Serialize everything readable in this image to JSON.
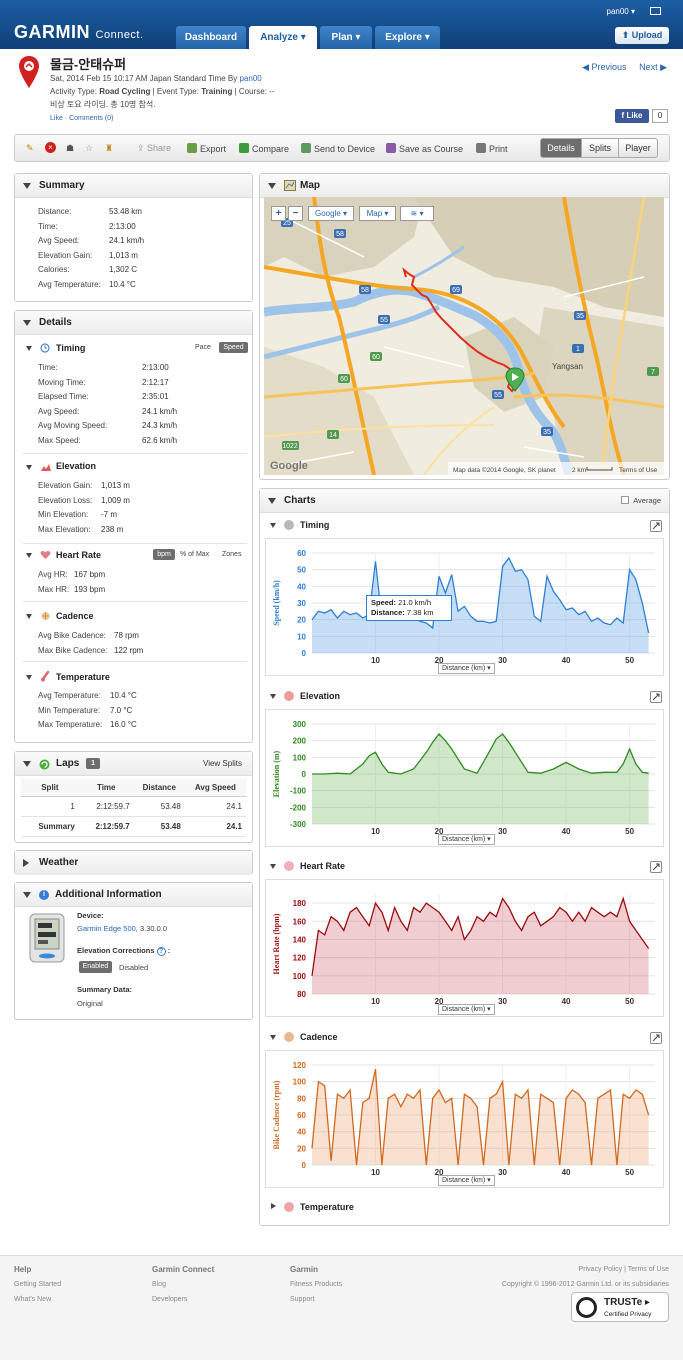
{
  "header": {
    "logo": "GARMIN",
    "logo_sub": "Connect.",
    "nav": [
      "Dashboard",
      "Analyze",
      "Plan",
      "Explore"
    ],
    "user": "pan00",
    "upload": "Upload"
  },
  "activity": {
    "name": "물금-안태슈퍼",
    "date_line": "Sat, 2014 Feb 15 10:17 AM Japan Standard Time By",
    "by_user": "pan00",
    "type_label": "Activity Type:",
    "type_value": "Road Cycling",
    "event_label": "| Event Type:",
    "event_value": "Training",
    "course_label": "| Course: --",
    "description": "비상 토요 라이딩. 총 10명 참석.",
    "like": "Like",
    "comments": "Comments (0)",
    "previous": "Previous",
    "next": "Next",
    "fb_like": "Like",
    "fb_count": "0"
  },
  "toolbar": {
    "share": "Share",
    "export": "Export",
    "compare": "Compare",
    "send": "Send to Device",
    "save_course": "Save as Course",
    "print": "Print",
    "views": [
      "Details",
      "Splits",
      "Player"
    ]
  },
  "summary": {
    "title": "Summary",
    "rows": [
      {
        "label": "Distance:",
        "value": "53.48 km"
      },
      {
        "label": "Time:",
        "value": "2:13:00"
      },
      {
        "label": "Avg Speed:",
        "value": "24.1 km/h"
      },
      {
        "label": "Elevation Gain:",
        "value": "1,013 m"
      },
      {
        "label": "Calories:",
        "value": "1,302 C"
      },
      {
        "label": "Avg Temperature:",
        "value": "10.4 °C"
      }
    ]
  },
  "details": {
    "title": "Details",
    "timing": {
      "title": "Timing",
      "pace": "Pace",
      "speed": "Speed",
      "rows": [
        {
          "label": "Time:",
          "value": "2:13:00"
        },
        {
          "label": "Moving Time:",
          "value": "2:12:17"
        },
        {
          "label": "Elapsed Time:",
          "value": "2:35:01"
        },
        {
          "label": "Avg Speed:",
          "value": "24.1 km/h"
        },
        {
          "label": "Avg Moving Speed:",
          "value": "24.3 km/h"
        },
        {
          "label": "Max Speed:",
          "value": "62.6 km/h"
        }
      ]
    },
    "elevation": {
      "title": "Elevation",
      "rows": [
        {
          "label": "Elevation Gain:",
          "value": "1,013 m"
        },
        {
          "label": "Elevation Loss:",
          "value": "1,009 m"
        },
        {
          "label": "Min Elevation:",
          "value": "-7 m"
        },
        {
          "label": "Max Elevation:",
          "value": "238 m"
        }
      ]
    },
    "heart_rate": {
      "title": "Heart Rate",
      "bpm": "bpm",
      "pct_max": "% of Max",
      "zones": "Zones",
      "rows": [
        {
          "label": "Avg HR:",
          "value": "167 bpm"
        },
        {
          "label": "Max HR:",
          "value": "193 bpm"
        }
      ]
    },
    "cadence": {
      "title": "Cadence",
      "rows": [
        {
          "label": "Avg Bike Cadence:",
          "value": "78 rpm"
        },
        {
          "label": "Max Bike Cadence:",
          "value": "122 rpm"
        }
      ]
    },
    "temperature": {
      "title": "Temperature",
      "rows": [
        {
          "label": "Avg Temperature:",
          "value": "10.4 °C"
        },
        {
          "label": "Min Temperature:",
          "value": "7.0 °C"
        },
        {
          "label": "Max Temperature:",
          "value": "16.0 °C"
        }
      ]
    }
  },
  "laps": {
    "title": "Laps",
    "count": "1",
    "view_splits": "View Splits",
    "columns": [
      "Split",
      "Time",
      "Distance",
      "Avg Speed"
    ],
    "rows": [
      [
        "1",
        "2:12:59.7",
        "53.48",
        "24.1"
      ],
      [
        "Summary",
        "2:12:59.7",
        "53.48",
        "24.1"
      ]
    ]
  },
  "weather": {
    "title": "Weather"
  },
  "additional": {
    "title": "Additional Information",
    "device_label": "Device:",
    "device_name": "Garmin Edge 500",
    "device_version": ", 3.30.0.0",
    "elev_corr": "Elevation Corrections",
    "enabled": "Enabled",
    "disabled": "Disabled",
    "summary_data": "Summary Data:",
    "original": "Original"
  },
  "map": {
    "title": "Map",
    "google": "Google",
    "maptype": "Map",
    "attribution": "Map data ©2014 Google, SK planet",
    "scale": "2 km",
    "terms": "Terms of Use",
    "place_yangsan": "Yangsan",
    "road_labels": [
      "25",
      "58",
      "58",
      "69",
      "35",
      "55",
      "1",
      "60",
      "60",
      "55",
      "35",
      "14",
      "7",
      "1022"
    ]
  },
  "charts": {
    "title": "Charts",
    "average": "Average",
    "x_label": "Distance (km)",
    "temperature_title": "Temperature",
    "tooltip": {
      "speed_label": "Speed:",
      "speed_value": "21.0 km/h",
      "dist_label": "Distance:",
      "dist_value": "7.38 km"
    },
    "colors": {
      "timing": "#2f7fd4",
      "elevation": "#2e8b1e",
      "heart": "#9b0d0d",
      "cadence": "#d2691e"
    }
  },
  "chart_data": [
    {
      "type": "area",
      "title": "Timing",
      "ylabel": "Speed (km/h)",
      "xlabel": "Distance (km)",
      "ylim": [
        0,
        60
      ],
      "yticks": [
        0,
        10,
        20,
        30,
        40,
        50,
        60
      ],
      "xticks": [
        10,
        20,
        30,
        40,
        50
      ],
      "x": [
        0,
        1,
        2,
        3,
        4,
        5,
        6,
        7,
        8,
        9,
        10,
        11,
        12,
        13,
        14,
        15,
        16,
        17,
        18,
        19,
        20,
        21,
        22,
        23,
        24,
        25,
        26,
        27,
        28,
        29,
        30,
        31,
        32,
        33,
        34,
        35,
        36,
        37,
        38,
        39,
        40,
        41,
        42,
        43,
        44,
        45,
        46,
        47,
        48,
        49,
        50,
        51,
        52,
        53
      ],
      "y": [
        20,
        25,
        24,
        26,
        21,
        25,
        23,
        24,
        21,
        23,
        55,
        20,
        33,
        28,
        22,
        24,
        21,
        19,
        18,
        15,
        46,
        36,
        47,
        25,
        28,
        22,
        19,
        19,
        18,
        19,
        52,
        57,
        49,
        50,
        44,
        22,
        19,
        46,
        37,
        32,
        26,
        27,
        23,
        25,
        19,
        21,
        18,
        17,
        21,
        18,
        50,
        44,
        30,
        12
      ]
    },
    {
      "type": "area",
      "title": "Elevation",
      "ylabel": "Elevation (m)",
      "xlabel": "Distance (km)",
      "ylim": [
        -300,
        300
      ],
      "yticks": [
        -300,
        -200,
        -100,
        0,
        100,
        200,
        300
      ],
      "xticks": [
        10,
        20,
        30,
        40,
        50
      ],
      "x": [
        0,
        2,
        4,
        6,
        8,
        9,
        10,
        11,
        12,
        14,
        16,
        18,
        19,
        20,
        21,
        22,
        24,
        26,
        28,
        29,
        30,
        31,
        32,
        34,
        36,
        38,
        40,
        42,
        44,
        46,
        48,
        49,
        50,
        51,
        52,
        53
      ],
      "y": [
        0,
        0,
        5,
        0,
        60,
        110,
        130,
        60,
        10,
        0,
        30,
        130,
        190,
        240,
        200,
        150,
        30,
        5,
        140,
        210,
        240,
        190,
        130,
        10,
        5,
        30,
        70,
        30,
        5,
        10,
        10,
        60,
        150,
        60,
        10,
        5
      ]
    },
    {
      "type": "area",
      "title": "Heart Rate",
      "ylabel": "Heart Rate (bpm)",
      "xlabel": "Distance (km)",
      "ylim": [
        80,
        190
      ],
      "yticks": [
        80,
        100,
        120,
        140,
        160,
        180
      ],
      "xticks": [
        10,
        20,
        30,
        40,
        50
      ],
      "x": [
        0,
        1,
        2,
        3,
        4,
        5,
        6,
        7,
        8,
        9,
        10,
        11,
        12,
        13,
        14,
        15,
        16,
        17,
        18,
        19,
        20,
        21,
        22,
        23,
        24,
        25,
        26,
        27,
        28,
        29,
        30,
        31,
        32,
        33,
        34,
        35,
        36,
        37,
        38,
        39,
        40,
        41,
        42,
        43,
        44,
        45,
        46,
        47,
        48,
        49,
        50,
        51,
        52,
        53
      ],
      "y": [
        100,
        150,
        145,
        165,
        160,
        150,
        170,
        175,
        165,
        155,
        180,
        170,
        150,
        175,
        160,
        150,
        175,
        170,
        180,
        175,
        170,
        160,
        150,
        165,
        140,
        150,
        165,
        160,
        170,
        165,
        185,
        175,
        160,
        150,
        165,
        170,
        155,
        160,
        165,
        175,
        170,
        160,
        170,
        160,
        175,
        170,
        165,
        170,
        165,
        185,
        160,
        150,
        140,
        130
      ]
    },
    {
      "type": "area",
      "title": "Cadence",
      "ylabel": "Bike Cadence (rpm)",
      "xlabel": "Distance (km)",
      "ylim": [
        0,
        120
      ],
      "yticks": [
        0,
        20,
        40,
        60,
        80,
        100,
        120
      ],
      "xticks": [
        10,
        20,
        30,
        40,
        50
      ],
      "x": [
        0,
        1,
        2,
        3,
        4,
        5,
        6,
        7,
        8,
        9,
        10,
        11,
        12,
        13,
        14,
        15,
        16,
        17,
        18,
        19,
        20,
        21,
        22,
        23,
        24,
        25,
        26,
        27,
        28,
        29,
        30,
        31,
        32,
        33,
        34,
        35,
        36,
        37,
        38,
        39,
        40,
        41,
        42,
        43,
        44,
        45,
        46,
        47,
        48,
        49,
        50,
        51,
        52,
        53
      ],
      "y": [
        20,
        100,
        95,
        5,
        85,
        80,
        90,
        0,
        75,
        80,
        115,
        0,
        80,
        85,
        70,
        85,
        80,
        90,
        0,
        80,
        90,
        75,
        80,
        0,
        85,
        80,
        70,
        0,
        80,
        85,
        100,
        0,
        85,
        80,
        90,
        0,
        85,
        80,
        75,
        0,
        80,
        90,
        85,
        75,
        0,
        80,
        85,
        90,
        0,
        85,
        80,
        90,
        85,
        60
      ]
    }
  ],
  "footer": {
    "help": "Help",
    "getting_started": "Getting Started",
    "whats_new": "What's New",
    "gc": "Garmin Connect",
    "blog": "Blog",
    "developers": "Developers",
    "garmin": "Garmin",
    "fitness": "Fitness Products",
    "support": "Support",
    "privacy": "Privacy Policy | Terms of Use",
    "copyright": "Copyright © 1996-2012 Garmin Ltd. or its subsidiaries",
    "truste": "TRUSTe",
    "truste_sub": "Certified Privacy"
  }
}
